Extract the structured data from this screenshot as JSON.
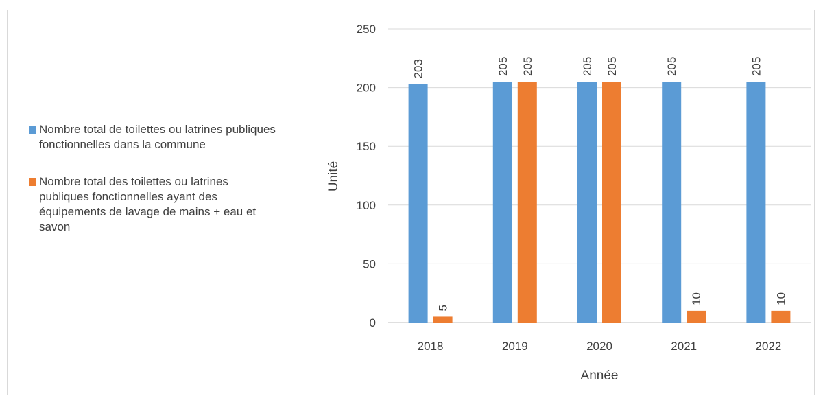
{
  "chart_data": {
    "type": "bar",
    "categories": [
      "2018",
      "2019",
      "2020",
      "2021",
      "2022"
    ],
    "series": [
      {
        "name": "Nombre total de toilettes ou latrines publiques fonctionnelles dans la commune",
        "values": [
          203,
          205,
          205,
          205,
          205
        ],
        "color": "#5b9bd5"
      },
      {
        "name": "Nombre total des toilettes ou latrines publiques fonctionnelles ayant des équipements de lavage de mains + eau et savon",
        "values": [
          5,
          205,
          205,
          10,
          10
        ],
        "color": "#ed7d31"
      }
    ],
    "xlabel": "Année",
    "ylabel": "Unité",
    "ylim": [
      0,
      250
    ],
    "yticks": [
      0,
      50,
      100,
      150,
      200,
      250
    ],
    "grid": true,
    "legend_position": "left",
    "data_labels": true
  }
}
